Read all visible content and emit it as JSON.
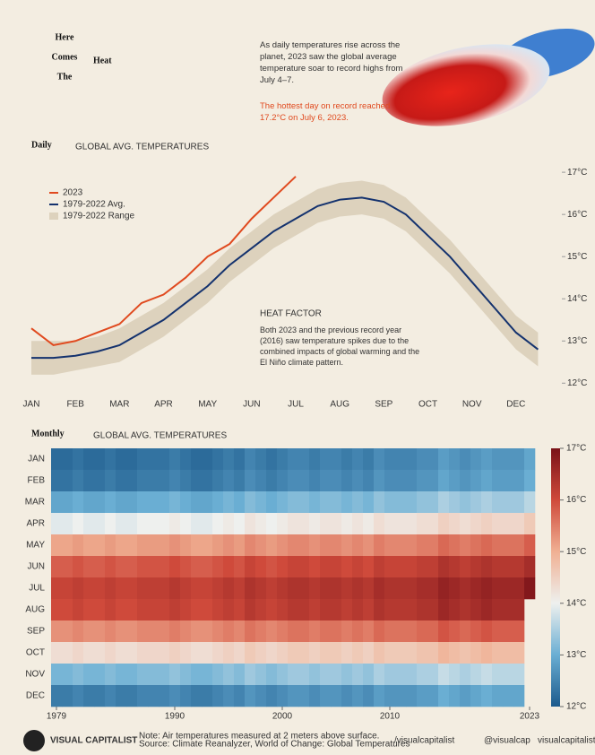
{
  "header": {
    "title_lines": [
      "Here",
      "Comes",
      "The"
    ],
    "title_big": "Heat",
    "intro": "As daily temperatures rise across the planet, 2023 saw the global average temperature soar to record highs from July 4–7.",
    "note": "The hottest day on record reached 17.2°C on July 6, 2023."
  },
  "chart_data": [
    {
      "type": "line",
      "title": "Daily",
      "subtitle": "GLOBAL AVG. TEMPERATURES",
      "categories": [
        "JAN",
        null,
        "FEB",
        null,
        "MAR",
        null,
        "APR",
        null,
        "MAY",
        null,
        "JUN",
        null,
        "JUL",
        null,
        "AUG",
        null,
        "SEP",
        null,
        "OCT",
        null,
        "NOV",
        null,
        "DEC",
        null
      ],
      "series": [
        {
          "name": "2023",
          "color": "#e04a1f",
          "values": [
            13.3,
            12.9,
            13.0,
            13.2,
            13.4,
            13.9,
            14.1,
            14.5,
            15.0,
            15.3,
            15.9,
            16.4,
            16.9,
            null,
            null,
            null,
            null,
            null,
            null,
            null,
            null,
            null,
            null,
            null
          ]
        },
        {
          "name": "1979-2022 Avg.",
          "color": "#14326e",
          "values": [
            12.6,
            12.6,
            12.65,
            12.75,
            12.9,
            13.2,
            13.5,
            13.9,
            14.3,
            14.8,
            15.2,
            15.6,
            15.9,
            16.2,
            16.35,
            16.4,
            16.3,
            16.0,
            15.5,
            15.0,
            14.4,
            13.8,
            13.2,
            12.8
          ]
        },
        {
          "name": "1979-2022 Range",
          "color": "#ddd2bd",
          "low": [
            12.2,
            12.2,
            12.3,
            12.4,
            12.5,
            12.8,
            13.1,
            13.5,
            13.9,
            14.4,
            14.8,
            15.2,
            15.5,
            15.8,
            15.95,
            16.0,
            15.9,
            15.6,
            15.1,
            14.6,
            14.0,
            13.4,
            12.8,
            12.4
          ],
          "high": [
            13.0,
            13.0,
            13.0,
            13.1,
            13.3,
            13.6,
            13.9,
            14.3,
            14.7,
            15.2,
            15.6,
            16.0,
            16.3,
            16.6,
            16.75,
            16.8,
            16.7,
            16.4,
            15.9,
            15.4,
            14.8,
            14.2,
            13.6,
            13.2
          ]
        }
      ],
      "ylim": [
        11.9,
        17.3
      ],
      "yticks": [
        {
          "value": 12,
          "label": "12°C"
        },
        {
          "value": 13,
          "label": "13°C"
        },
        {
          "value": 14,
          "label": "14°C"
        },
        {
          "value": 15,
          "label": "15°C"
        },
        {
          "value": 16,
          "label": "16°C"
        },
        {
          "value": 17,
          "label": "17°C"
        }
      ],
      "legend": "upper left",
      "annotation": {
        "title": "HEAT FACTOR",
        "text": "Both 2023 and the previous record year (2016) saw temperature spikes due to the combined impacts of global warming and the El Niño climate pattern."
      }
    },
    {
      "type": "heatmap",
      "title": "Monthly",
      "subtitle": "GLOBAL AVG. TEMPERATURES",
      "x": [
        1979,
        1980,
        1981,
        1982,
        1983,
        1984,
        1985,
        1986,
        1987,
        1988,
        1989,
        1990,
        1991,
        1992,
        1993,
        1994,
        1995,
        1996,
        1997,
        1998,
        1999,
        2000,
        2001,
        2002,
        2003,
        2004,
        2005,
        2006,
        2007,
        2008,
        2009,
        2010,
        2011,
        2012,
        2013,
        2014,
        2015,
        2016,
        2017,
        2018,
        2019,
        2020,
        2021,
        2022,
        2023
      ],
      "xticks": [
        1979,
        1990,
        2000,
        2010,
        2023
      ],
      "series": [
        {
          "name": "JAN",
          "values": [
            12.2,
            12.2,
            12.3,
            12.2,
            12.2,
            12.3,
            12.2,
            12.2,
            12.3,
            12.3,
            12.3,
            12.4,
            12.3,
            12.2,
            12.2,
            12.3,
            12.4,
            12.3,
            12.5,
            12.4,
            12.3,
            12.4,
            12.5,
            12.5,
            12.4,
            12.5,
            12.5,
            12.4,
            12.5,
            12.4,
            12.6,
            12.5,
            12.5,
            12.5,
            12.6,
            12.6,
            12.8,
            12.7,
            12.6,
            12.7,
            12.8,
            12.7,
            12.7,
            12.7,
            12.9
          ]
        },
        {
          "name": "FEB",
          "values": [
            12.3,
            12.3,
            12.4,
            12.3,
            12.3,
            12.4,
            12.3,
            12.3,
            12.4,
            12.4,
            12.4,
            12.5,
            12.4,
            12.3,
            12.3,
            12.4,
            12.5,
            12.4,
            12.6,
            12.5,
            12.4,
            12.5,
            12.6,
            12.6,
            12.5,
            12.6,
            12.6,
            12.5,
            12.6,
            12.5,
            12.7,
            12.6,
            12.6,
            12.6,
            12.7,
            12.7,
            12.9,
            12.8,
            12.7,
            12.8,
            12.9,
            12.8,
            12.8,
            12.8,
            13.0
          ]
        },
        {
          "name": "MAR",
          "values": [
            12.9,
            12.9,
            13.0,
            12.9,
            12.9,
            13.0,
            12.9,
            12.9,
            13.0,
            13.0,
            13.0,
            13.1,
            13.0,
            12.9,
            12.9,
            13.0,
            13.1,
            13.0,
            13.2,
            13.1,
            13.0,
            13.1,
            13.2,
            13.2,
            13.1,
            13.2,
            13.2,
            13.1,
            13.2,
            13.1,
            13.3,
            13.2,
            13.2,
            13.2,
            13.3,
            13.3,
            13.5,
            13.4,
            13.3,
            13.4,
            13.5,
            13.4,
            13.4,
            13.4,
            13.6
          ]
        },
        {
          "name": "APR",
          "values": [
            13.9,
            13.9,
            14.0,
            13.9,
            13.9,
            14.0,
            13.9,
            13.9,
            14.0,
            14.0,
            14.0,
            14.1,
            14.0,
            13.9,
            13.9,
            14.0,
            14.1,
            14.0,
            14.2,
            14.1,
            14.0,
            14.1,
            14.2,
            14.2,
            14.1,
            14.2,
            14.2,
            14.1,
            14.2,
            14.1,
            14.3,
            14.2,
            14.2,
            14.2,
            14.3,
            14.3,
            14.5,
            14.4,
            14.3,
            14.4,
            14.5,
            14.4,
            14.4,
            14.4,
            14.6
          ]
        },
        {
          "name": "MAY",
          "values": [
            15.1,
            15.1,
            15.2,
            15.1,
            15.1,
            15.2,
            15.1,
            15.1,
            15.2,
            15.2,
            15.2,
            15.3,
            15.2,
            15.1,
            15.1,
            15.2,
            15.3,
            15.2,
            15.4,
            15.3,
            15.2,
            15.3,
            15.4,
            15.4,
            15.3,
            15.4,
            15.4,
            15.3,
            15.4,
            15.3,
            15.5,
            15.4,
            15.4,
            15.4,
            15.5,
            15.5,
            15.7,
            15.6,
            15.5,
            15.6,
            15.7,
            15.6,
            15.6,
            15.6,
            15.8
          ]
        },
        {
          "name": "JUN",
          "values": [
            15.8,
            15.8,
            15.9,
            15.8,
            15.8,
            15.9,
            15.8,
            15.8,
            15.9,
            15.9,
            15.9,
            16.0,
            15.9,
            15.8,
            15.8,
            15.9,
            16.0,
            15.9,
            16.1,
            16.0,
            15.9,
            16.0,
            16.1,
            16.1,
            16.0,
            16.1,
            16.1,
            16.0,
            16.1,
            16.0,
            16.2,
            16.1,
            16.1,
            16.1,
            16.2,
            16.2,
            16.4,
            16.3,
            16.2,
            16.3,
            16.4,
            16.3,
            16.3,
            16.3,
            16.5
          ]
        },
        {
          "name": "JUL",
          "values": [
            16.1,
            16.1,
            16.2,
            16.1,
            16.1,
            16.2,
            16.1,
            16.1,
            16.2,
            16.2,
            16.2,
            16.3,
            16.2,
            16.1,
            16.1,
            16.2,
            16.3,
            16.2,
            16.4,
            16.3,
            16.2,
            16.3,
            16.4,
            16.4,
            16.3,
            16.4,
            16.4,
            16.3,
            16.4,
            16.3,
            16.5,
            16.4,
            16.4,
            16.4,
            16.5,
            16.5,
            16.7,
            16.6,
            16.5,
            16.6,
            16.7,
            16.6,
            16.6,
            16.6,
            16.9
          ]
        },
        {
          "name": "AUG",
          "values": [
            16.0,
            16.0,
            16.1,
            16.0,
            16.0,
            16.1,
            16.0,
            16.0,
            16.1,
            16.1,
            16.1,
            16.2,
            16.1,
            16.0,
            16.0,
            16.1,
            16.2,
            16.1,
            16.3,
            16.2,
            16.1,
            16.2,
            16.3,
            16.3,
            16.2,
            16.3,
            16.3,
            16.2,
            16.3,
            16.2,
            16.4,
            16.3,
            16.3,
            16.3,
            16.4,
            16.4,
            16.6,
            16.5,
            16.4,
            16.5,
            16.6,
            16.5,
            16.5,
            16.5,
            null
          ]
        },
        {
          "name": "SEP",
          "values": [
            15.3,
            15.3,
            15.4,
            15.3,
            15.3,
            15.4,
            15.3,
            15.3,
            15.4,
            15.4,
            15.4,
            15.5,
            15.4,
            15.3,
            15.3,
            15.4,
            15.5,
            15.4,
            15.6,
            15.5,
            15.4,
            15.5,
            15.6,
            15.6,
            15.5,
            15.6,
            15.6,
            15.5,
            15.6,
            15.5,
            15.7,
            15.6,
            15.6,
            15.6,
            15.7,
            15.7,
            15.9,
            15.8,
            15.7,
            15.8,
            15.9,
            15.8,
            15.8,
            15.8,
            null
          ]
        },
        {
          "name": "OCT",
          "values": [
            14.3,
            14.3,
            14.4,
            14.3,
            14.3,
            14.4,
            14.3,
            14.3,
            14.4,
            14.4,
            14.4,
            14.5,
            14.4,
            14.3,
            14.3,
            14.4,
            14.5,
            14.4,
            14.6,
            14.5,
            14.4,
            14.5,
            14.6,
            14.6,
            14.5,
            14.6,
            14.6,
            14.5,
            14.6,
            14.5,
            14.7,
            14.6,
            14.6,
            14.6,
            14.7,
            14.7,
            14.9,
            14.8,
            14.7,
            14.8,
            14.9,
            14.8,
            14.8,
            14.8,
            null
          ]
        },
        {
          "name": "NOV",
          "values": [
            13.1,
            13.1,
            13.2,
            13.1,
            13.1,
            13.2,
            13.1,
            13.1,
            13.2,
            13.2,
            13.2,
            13.3,
            13.2,
            13.1,
            13.1,
            13.2,
            13.3,
            13.2,
            13.4,
            13.3,
            13.2,
            13.3,
            13.4,
            13.4,
            13.3,
            13.4,
            13.4,
            13.3,
            13.4,
            13.3,
            13.5,
            13.4,
            13.4,
            13.4,
            13.5,
            13.5,
            13.7,
            13.6,
            13.5,
            13.6,
            13.7,
            13.6,
            13.6,
            13.6,
            null
          ]
        },
        {
          "name": "DEC",
          "values": [
            12.4,
            12.4,
            12.5,
            12.4,
            12.4,
            12.5,
            12.4,
            12.4,
            12.5,
            12.5,
            12.5,
            12.6,
            12.5,
            12.4,
            12.4,
            12.5,
            12.6,
            12.5,
            12.7,
            12.6,
            12.5,
            12.6,
            12.7,
            12.7,
            12.6,
            12.7,
            12.7,
            12.6,
            12.7,
            12.6,
            12.8,
            12.7,
            12.7,
            12.7,
            12.8,
            12.8,
            13.0,
            12.9,
            12.8,
            12.9,
            13.0,
            12.9,
            12.9,
            12.9,
            null
          ]
        }
      ],
      "zlim": [
        12,
        17
      ],
      "zticks": [
        {
          "value": 12,
          "label": "12°C"
        },
        {
          "value": 13,
          "label": "13°C"
        },
        {
          "value": 14,
          "label": "14°C"
        },
        {
          "value": 15,
          "label": "15°C"
        },
        {
          "value": 16,
          "label": "16°C"
        },
        {
          "value": 17,
          "label": "17°C"
        }
      ],
      "colors": [
        "#1c5a8c",
        "#6aaed3",
        "#eef0ee",
        "#f0b093",
        "#cf4a3b",
        "#7a1218"
      ]
    }
  ],
  "footer": {
    "brand": "VISUAL CAPITALIST",
    "note": "Note: Air temperatures measured at 2 meters above surface.",
    "source": "Source: Climate Reanalyzer, World of Change: Global Temperatures",
    "social": [
      "/visualcapitalist",
      "@visualcap",
      "visualcapitalist.com"
    ]
  }
}
